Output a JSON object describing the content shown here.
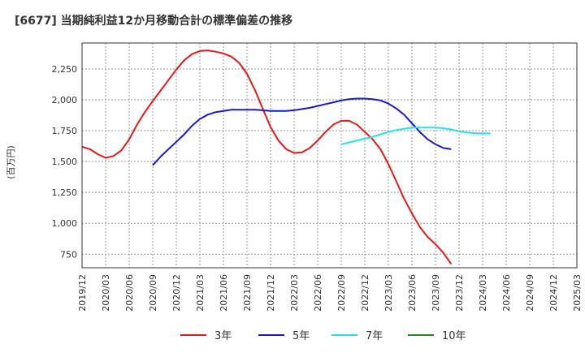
{
  "chart_data": {
    "type": "line",
    "title": "[6677]  当期純利益12か月移動合計の標準偏差の推移",
    "ylabel": "(百万円)",
    "xlabel": "",
    "ylim": [
      640,
      2460
    ],
    "yticks": [
      750,
      1000,
      1250,
      1500,
      1750,
      2000,
      2250
    ],
    "ytick_labels": [
      "750",
      "1,000",
      "1,250",
      "1,500",
      "1,750",
      "2,000",
      "2,250"
    ],
    "x_categories": [
      "2019/12",
      "2020/03",
      "2020/06",
      "2020/09",
      "2020/12",
      "2021/03",
      "2021/06",
      "2021/09",
      "2021/12",
      "2022/03",
      "2022/06",
      "2022/09",
      "2022/12",
      "2023/03",
      "2023/06",
      "2023/09",
      "2023/12",
      "2024/03",
      "2024/06",
      "2024/09",
      "2024/12",
      "2025/03"
    ],
    "grid": true,
    "legend_position": "bottom",
    "series": [
      {
        "name": "3年",
        "color": "#e31a1c",
        "start_index": 0,
        "values": [
          1620,
          1600,
          1560,
          1530,
          1545,
          1590,
          1680,
          1800,
          1900,
          1990,
          2075,
          2160,
          2245,
          2320,
          2370,
          2395,
          2400,
          2390,
          2375,
          2350,
          2300,
          2210,
          2080,
          1930,
          1780,
          1670,
          1600,
          1570,
          1575,
          1610,
          1670,
          1740,
          1800,
          1830,
          1830,
          1800,
          1740,
          1680,
          1600,
          1480,
          1340,
          1200,
          1080,
          970,
          890,
          830,
          760,
          670
        ]
      },
      {
        "name": "5年",
        "color": "#1a1acd",
        "start_index": 9,
        "values": [
          1470,
          1540,
          1600,
          1660,
          1720,
          1790,
          1845,
          1880,
          1900,
          1910,
          1920,
          1920,
          1920,
          1920,
          1915,
          1910,
          1910,
          1910,
          1915,
          1925,
          1935,
          1950,
          1965,
          1980,
          1995,
          2005,
          2010,
          2010,
          2005,
          1995,
          1970,
          1930,
          1880,
          1810,
          1740,
          1680,
          1640,
          1610,
          1600
        ]
      },
      {
        "name": "7年",
        "color": "#22e0f0",
        "start_index": 33,
        "values": [
          1640,
          1655,
          1670,
          1685,
          1700,
          1720,
          1740,
          1755,
          1765,
          1775,
          1775,
          1775,
          1775,
          1770,
          1760,
          1745,
          1735,
          1730,
          1728,
          1728
        ]
      },
      {
        "name": "10年",
        "color": "#228b22",
        "start_index": 0,
        "values": []
      }
    ]
  }
}
